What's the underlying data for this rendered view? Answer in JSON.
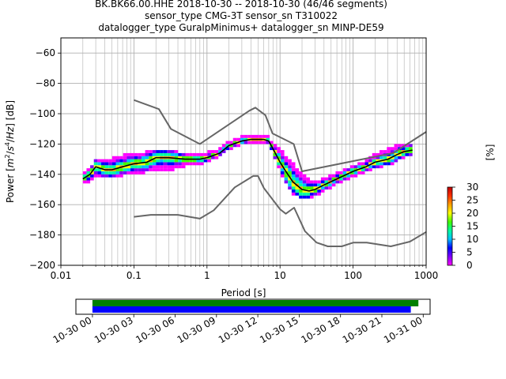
{
  "figure": {
    "title_lines": [
      "BK.BK66.00.HHE   2018-10-30 -- 2018-10-30  (46/46 segments)",
      "sensor_type CMG-3T sensor_sn T310022",
      "datalogger_type GuralpMinimus+ datalogger_sn MINP-DE59"
    ]
  },
  "chart_data": [
    {
      "type": "heatmap",
      "subtype": "probabilistic power spectral density",
      "xlabel": "Period [s]",
      "ylabel_parts": [
        "Power [",
        "m",
        "2",
        "/",
        "s",
        "4",
        "/",
        "Hz",
        "] [dB]"
      ],
      "x_scale": "log",
      "xlim": [
        0.01,
        1000
      ],
      "ylim": [
        -200,
        -50
      ],
      "x_ticks": [
        0.01,
        0.1,
        1,
        10,
        100,
        1000
      ],
      "x_tick_labels": [
        "0.01",
        "0.1",
        "1",
        "10",
        "100",
        "1000"
      ],
      "y_ticks": [
        -200,
        -180,
        -160,
        -140,
        -120,
        -100,
        -80,
        -60
      ],
      "y_tick_labels": [
        "−200",
        "−180",
        "−160",
        "−140",
        "−120",
        "−100",
        "−80",
        "−60"
      ],
      "grid": true,
      "mean_curve": {
        "color": "#000000",
        "x": [
          0.02,
          0.025,
          0.03,
          0.04,
          0.05,
          0.07,
          0.1,
          0.15,
          0.2,
          0.3,
          0.5,
          0.8,
          1,
          1.5,
          2,
          3,
          4,
          5,
          6,
          7,
          8,
          10,
          12,
          15,
          20,
          25,
          30,
          40,
          60,
          100,
          150,
          200,
          300,
          400,
          500,
          650
        ],
        "y": [
          -143,
          -140,
          -135,
          -137,
          -137,
          -135,
          -133,
          -132,
          -129,
          -129,
          -130,
          -130,
          -129,
          -126,
          -121,
          -118,
          -117,
          -117,
          -117,
          -118,
          -123,
          -132,
          -138,
          -145,
          -150,
          -151,
          -150,
          -147,
          -143,
          -138,
          -135,
          -132,
          -130,
          -127,
          -125,
          -124
        ]
      },
      "ppsd_band": {
        "x": [
          0.02,
          0.025,
          0.03,
          0.04,
          0.05,
          0.07,
          0.1,
          0.15,
          0.2,
          0.3,
          0.5,
          0.8,
          1,
          1.5,
          2,
          3,
          4,
          5,
          6,
          7,
          8,
          10,
          12,
          15,
          20,
          25,
          30,
          40,
          60,
          100,
          150,
          200,
          300,
          400,
          500,
          650
        ],
        "lower": [
          -146,
          -144,
          -141,
          -142,
          -142,
          -140,
          -139,
          -138,
          -137,
          -137,
          -134,
          -133,
          -131,
          -127,
          -123,
          -120,
          -119,
          -119,
          -119,
          -120,
          -126,
          -138,
          -145,
          -152,
          -156,
          -155,
          -154,
          -150,
          -146,
          -141,
          -138,
          -135,
          -133,
          -131,
          -128,
          -128
        ],
        "upper": [
          -140,
          -136,
          -131,
          -130,
          -130,
          -128,
          -127,
          -126,
          -125,
          -125,
          -127,
          -127,
          -126,
          -124,
          -119,
          -116,
          -115,
          -115,
          -115,
          -116,
          -120,
          -124,
          -128,
          -133,
          -140,
          -144,
          -145,
          -143,
          -140,
          -135,
          -132,
          -127,
          -124,
          -121,
          -120,
          -120
        ]
      },
      "nhnm": {
        "color": "#666666",
        "x": [
          0.1,
          0.22,
          0.32,
          0.8,
          3.8,
          4.6,
          6.3,
          7.9,
          15.4,
          20,
          354,
          1000
        ],
        "y": [
          -91,
          -97,
          -110,
          -120,
          -98,
          -96,
          -101,
          -113,
          -120,
          -138,
          -126,
          -112
        ]
      },
      "nlnm": {
        "color": "#666666",
        "x": [
          0.1,
          0.17,
          0.4,
          0.8,
          1.24,
          2.4,
          4.3,
          5,
          6,
          10,
          12,
          15.6,
          21.9,
          31.6,
          45,
          70,
          101,
          154,
          328,
          600,
          1000
        ],
        "y": [
          -168,
          -166.7,
          -166.7,
          -169.2,
          -163.7,
          -148.6,
          -141.1,
          -141.1,
          -149,
          -163,
          -166,
          -162,
          -177.5,
          -185,
          -187.5,
          -187.5,
          -185,
          -185,
          -187.5,
          -184.4,
          -178
        ]
      },
      "colorbar": {
        "label": "[%]",
        "range": [
          0,
          30
        ],
        "ticks": [
          0,
          5,
          10,
          15,
          20,
          25,
          30
        ],
        "tick_labels": [
          "0",
          "5",
          "10",
          "15",
          "20",
          "25",
          "30"
        ],
        "colormap": [
          "#ff00ff",
          "#8000ff",
          "#0000ff",
          "#00c0ff",
          "#00ffa0",
          "#40ff00",
          "#ffff00",
          "#ffa000",
          "#ff3000",
          "#c00000"
        ]
      }
    },
    {
      "type": "bar",
      "subtype": "data coverage timeline",
      "bars": [
        {
          "color": "#008000",
          "start_hours": 0,
          "end_hours": 23.65
        },
        {
          "color": "#0000ff",
          "start_hours": 0,
          "end_hours": 23.1
        }
      ],
      "xlim_hours": [
        -1.2,
        24.5
      ],
      "x_ticks_hours": [
        0,
        3,
        6,
        9,
        12,
        15,
        18,
        21,
        24
      ],
      "x_tick_labels": [
        "10-30 00",
        "10-30 03",
        "10-30 06",
        "10-30 09",
        "10-30 12",
        "10-30 15",
        "10-30 18",
        "10-30 21",
        "10-31 00"
      ]
    }
  ]
}
